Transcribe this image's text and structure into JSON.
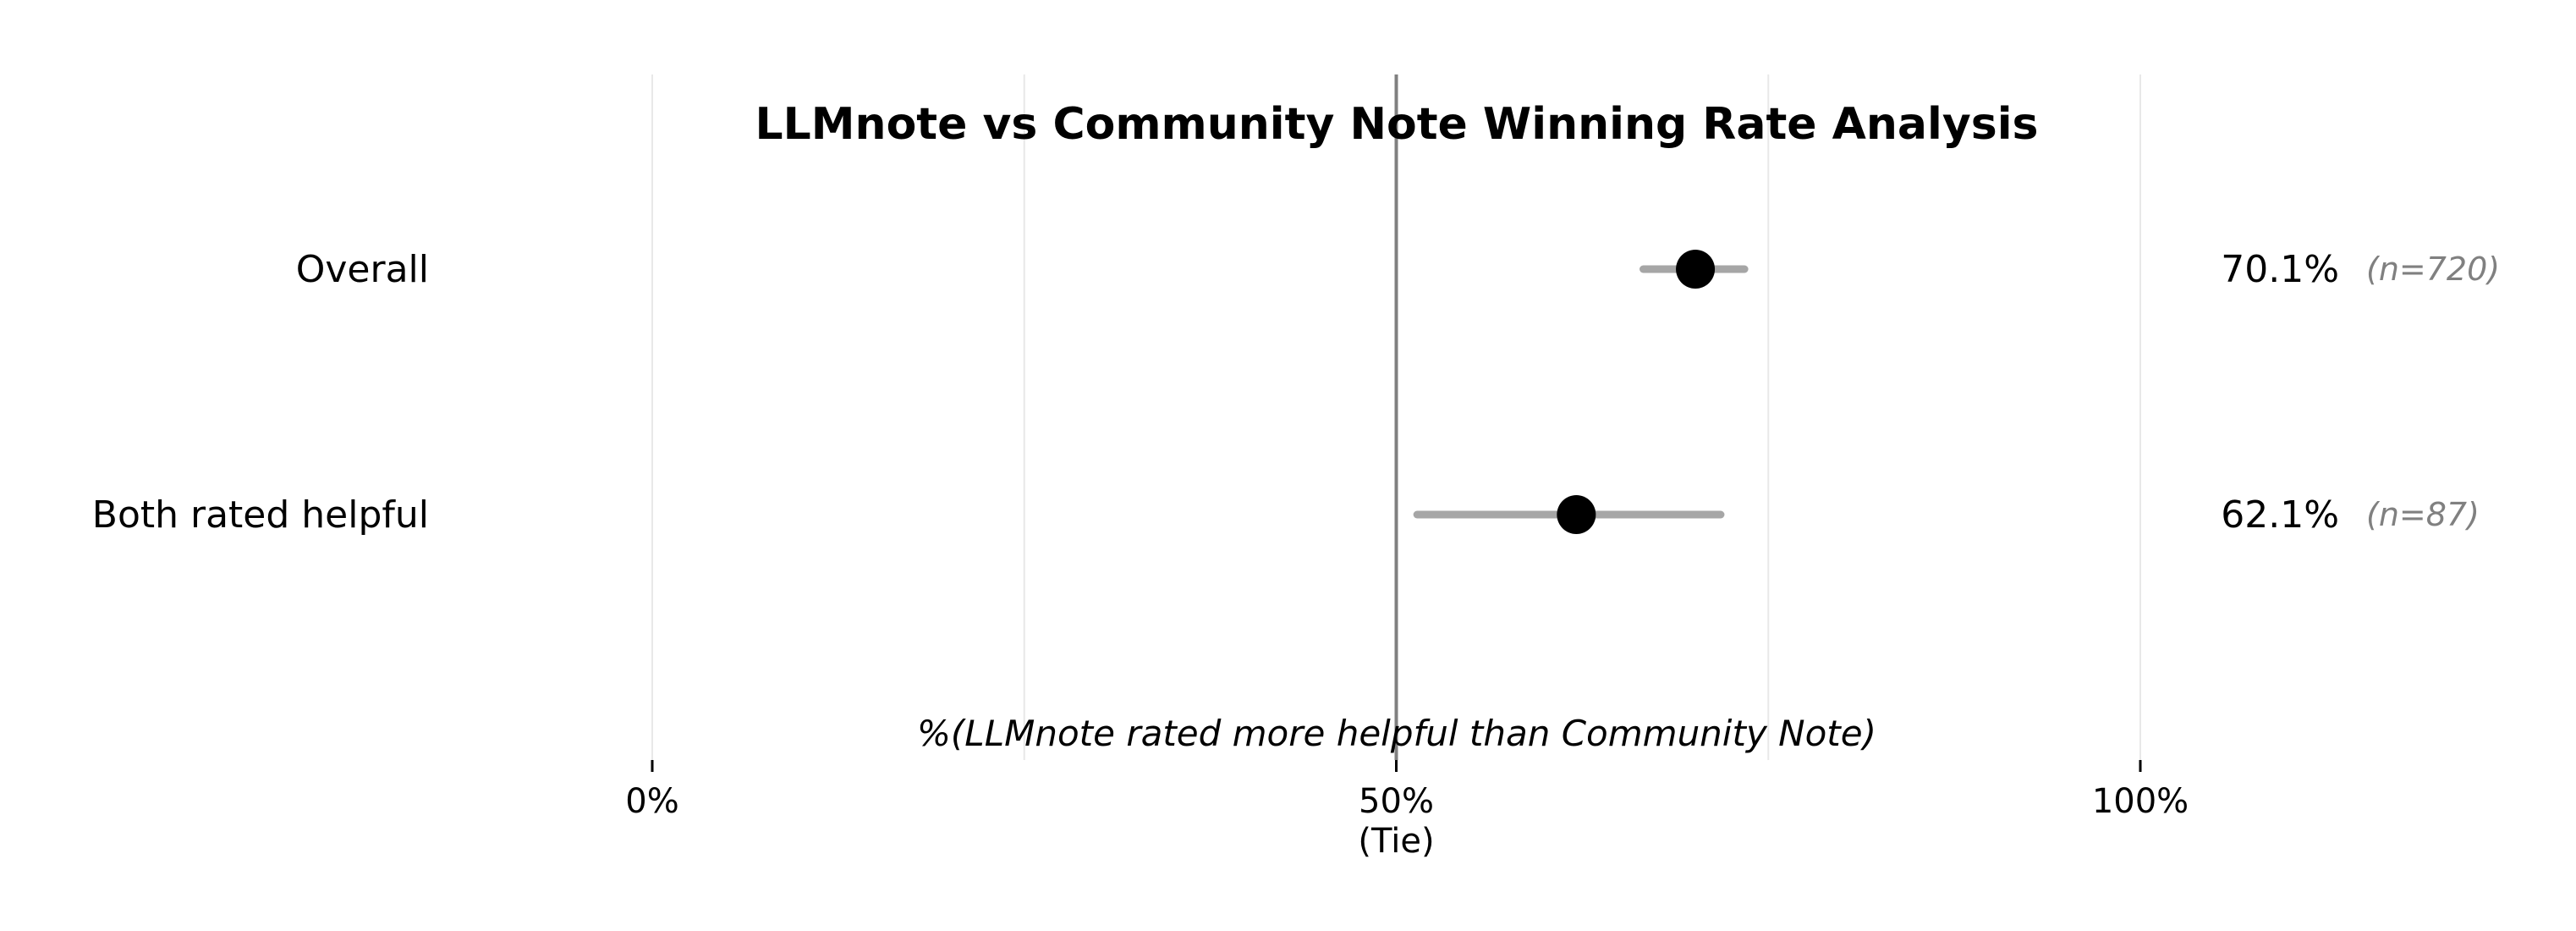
{
  "chart_data": {
    "type": "scatter",
    "title": "LLMnote vs Community Note Winning Rate Analysis",
    "xlabel": "%(LLMnote rated more helpful than Community Note)",
    "xlim": [
      0,
      100
    ],
    "x_ticks": [
      {
        "value": 0,
        "label": "0%",
        "sublabel": ""
      },
      {
        "value": 50,
        "label": "50%",
        "sublabel": "(Tie)"
      },
      {
        "value": 100,
        "label": "100%",
        "sublabel": ""
      }
    ],
    "minor_gridlines": [
      0,
      25,
      50,
      75,
      100
    ],
    "reference_line": 50,
    "grid": true,
    "categories": [
      "Overall",
      "Both rated helpful"
    ],
    "values": [
      70.1,
      62.1
    ],
    "ci_low": [
      66.6,
      51.4
    ],
    "ci_high": [
      73.4,
      71.8
    ],
    "value_labels": [
      "70.1%",
      "62.1%"
    ],
    "n_labels": [
      "(n=720)",
      "(n=87)"
    ],
    "colors": {
      "point": "#000000",
      "errorbar": "#a6a6a6",
      "reference": "#808080",
      "grid": "#e8e8e8",
      "n_text": "#808080"
    }
  }
}
